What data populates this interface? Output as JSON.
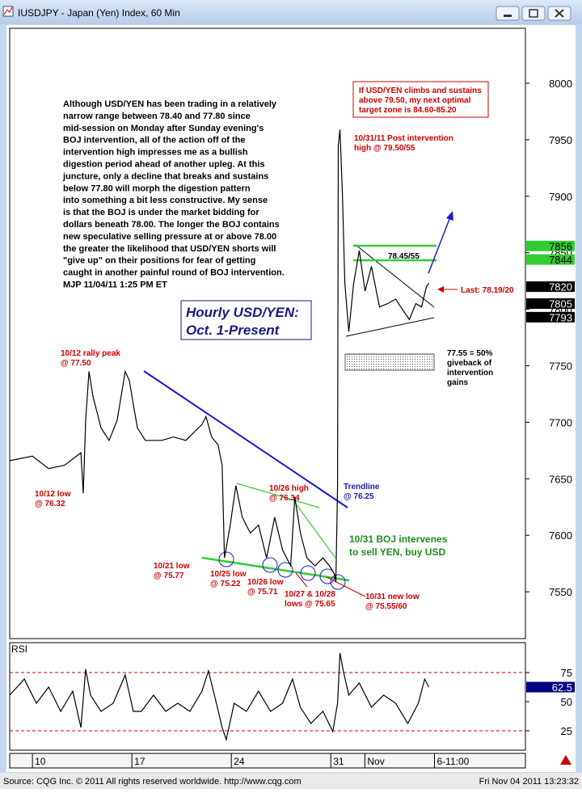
{
  "window": {
    "title": "IUSDJPY - Japan (Yen) Index, 60 Min",
    "footer_source": "Source: CQG Inc. © 2011 All rights reserved worldwide. http://www.cqg.com",
    "footer_time": "Fri Nov 04 2011 13:23:32"
  },
  "chart_data": [
    {
      "type": "line",
      "title": "Hourly USD/YEN:",
      "subtitle": "Oct. 1-Present",
      "x": [
        8.4,
        10,
        11.14,
        12.27,
        13.41,
        13.58,
        13.75,
        13.98,
        14.26,
        14.83,
        15.4,
        15.97,
        16.53,
        16.82,
        17.1,
        17.39,
        17.95,
        18.52,
        19.09,
        19.94,
        20.8,
        21.93,
        22.22,
        22.61,
        23.07,
        23.35,
        23.52,
        23.92,
        24.32,
        24.77,
        25.34,
        25.91,
        26.48,
        27.05,
        27.61,
        28.18,
        28.47,
        28.86,
        29.32,
        29.89,
        30.45,
        30.91,
        31.25,
        31.36,
        31.48,
        31.53,
        31.65,
        31.82,
        31.99,
        32.27,
        32.61,
        33.01,
        33.41,
        33.86,
        34.43,
        35,
        35.57,
        36.14,
        36.53,
        36.99,
        37.39,
        37.73,
        37.9
      ],
      "values": [
        7666,
        7670,
        7659,
        7662,
        7673,
        7637,
        7702,
        7745,
        7723,
        7695,
        7684,
        7702,
        7745,
        7737,
        7716,
        7695,
        7684,
        7684,
        7684,
        7687,
        7684,
        7698,
        7705,
        7687,
        7680,
        7662,
        7580,
        7609,
        7644,
        7616,
        7602,
        7609,
        7580,
        7616,
        7587,
        7573,
        7634,
        7602,
        7580,
        7573,
        7580,
        7573,
        7566,
        7559,
        7644,
        7945,
        7959,
        7902,
        7823,
        7780,
        7823,
        7852,
        7816,
        7838,
        7802,
        7805,
        7809,
        7798,
        7791,
        7805,
        7802,
        7820,
        7823
      ],
      "color": "#000000",
      "xlim": [
        8.4,
        44.7
      ],
      "ylim": [
        7508.6,
        8048.6
      ],
      "yticks": [
        7550,
        7600,
        7650,
        7700,
        7750,
        7800,
        7850,
        7900,
        7950,
        8000
      ],
      "price_markers": [
        {
          "value": 7856,
          "color": "#33cc33"
        },
        {
          "value": 7844,
          "color": "#33cc33"
        },
        {
          "value": 7820,
          "color": "#000000"
        },
        {
          "value": 7805,
          "color": "#000000"
        },
        {
          "value": 7793,
          "color": "#000000"
        }
      ],
      "commentary": [
        "Although USD/YEN has been trading in a relatively",
        "narrow range between 78.40 and 77.80 since",
        "mid-session on Monday after Sunday evening's",
        "BOJ intervention, all of the action off of the",
        "intervention high impresses me as a bullish",
        "digestion period ahead of another upleg. At this",
        "juncture, only a decline that breaks and sustains",
        "below 77.80 will morph the digestion pattern",
        "into something a bit less constructive. My sense",
        "is that the BOJ is under the market bidding for",
        "dollars beneath 78.00. The longer the BOJ contains",
        "new speculative selling pressure at or above 78.00",
        "the greater the likelihood that USD/YEN shorts will",
        "\"give up\" on their positions for fear of getting",
        "caught in another painful round of BOJ intervention.",
        "MJP 11/04/11  1:25 PM ET"
      ],
      "annotations": [
        {
          "lines": [
            "10/12 rally peak",
            "@ 77.50"
          ],
          "color": "#cc0000"
        },
        {
          "lines": [
            "10/12 low",
            "@ 76.32"
          ],
          "color": "#cc0000"
        },
        {
          "lines": [
            "10/21 low",
            "@ 75.77"
          ],
          "color": "#cc0000"
        },
        {
          "lines": [
            "10/25 low",
            "@ 75.22"
          ],
          "color": "#cc0000"
        },
        {
          "lines": [
            "10/26 high",
            "@ 76.34"
          ],
          "color": "#cc0000"
        },
        {
          "lines": [
            "10/26 low",
            "@ 75.71"
          ],
          "color": "#cc0000"
        },
        {
          "lines": [
            "10/27 & 10/28",
            "lows @ 75.65"
          ],
          "color": "#cc0000"
        },
        {
          "lines": [
            "10/31 new low",
            "@ 75.55/60"
          ],
          "color": "#cc0000"
        },
        {
          "lines": [
            "Trendline",
            "@ 76.25"
          ],
          "color": "#1a1aaa"
        },
        {
          "lines": [
            "10/31 BOJ intervenes",
            "to sell YEN, buy USD"
          ],
          "color": "#1f8c1f"
        },
        {
          "lines": [
            "10/31/11 Post intervention",
            "high @ 79.50/55"
          ],
          "color": "#cc0000"
        },
        {
          "lines": [
            "If USD/YEN climbs and sustains",
            "above 79.50, my next optimal",
            "target zone is 84.60-85.20"
          ],
          "color": "#cc0000"
        },
        {
          "lines": [
            "78.45/55"
          ],
          "color": "#000000"
        },
        {
          "lines": [
            "Last: 78.19/20"
          ],
          "color": "#cc0000"
        },
        {
          "lines": [
            "77.55 = 50%",
            "giveback of",
            "intervention",
            "gains"
          ],
          "color": "#000000"
        }
      ]
    },
    {
      "type": "line",
      "title": "RSI",
      "x": [
        8.4,
        9.43,
        10.28,
        11.14,
        11.99,
        12.84,
        13.41,
        13.75,
        14.09,
        14.83,
        15.68,
        16.53,
        17.1,
        17.67,
        18.52,
        19.38,
        20.23,
        21.08,
        21.93,
        22.39,
        22.95,
        23.35,
        23.64,
        24.2,
        25.06,
        25.91,
        26.76,
        27.61,
        28.3,
        28.86,
        29.6,
        30.45,
        31.14,
        31.48,
        31.65,
        31.88,
        32.27,
        33.01,
        33.86,
        34.72,
        35.57,
        36.42,
        37.16,
        37.61,
        37.9
      ],
      "values": [
        55.6,
        69.4,
        48.6,
        62.5,
        41.7,
        59,
        27.8,
        77.8,
        55.6,
        41.7,
        48.6,
        72.9,
        41.7,
        41.7,
        55.6,
        41.7,
        48.6,
        41.7,
        59,
        76.4,
        48.6,
        27.8,
        17.4,
        48.6,
        41.7,
        59,
        41.7,
        48.6,
        69.4,
        45.2,
        31.3,
        41.7,
        24.3,
        48.6,
        91.7,
        76.4,
        55.6,
        66,
        45.2,
        55.6,
        48.6,
        31.3,
        48.6,
        69.4,
        62.5
      ],
      "color": "#000000",
      "xlim": [
        8.4,
        44.7
      ],
      "ylim": [
        15.3,
        99.3
      ],
      "yticks": [
        75,
        50,
        25
      ],
      "levels": [
        75,
        25
      ],
      "level_color": "#cc0000",
      "xticks": [
        10,
        17,
        24,
        31,
        {
          "value": 33.4,
          "label": "Nov"
        },
        {
          "value": 38.3,
          "label": "6-11:00"
        }
      ],
      "price_markers": [
        {
          "value": 62.5,
          "color": "#000080"
        }
      ]
    }
  ]
}
